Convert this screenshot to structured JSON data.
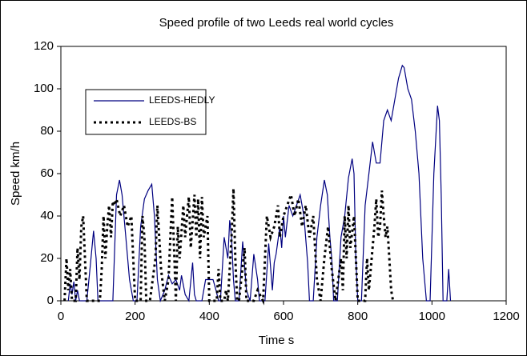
{
  "chart_data": {
    "type": "line",
    "title": "Speed profile of two Leeds real world cycles",
    "x_label": "Time  s",
    "y_label": "Speed  km/h",
    "xlim": [
      0,
      1200
    ],
    "xticks": [
      0,
      200,
      400,
      600,
      800,
      1000,
      1200
    ],
    "ylim": [
      0,
      120
    ],
    "yticks": [
      0,
      20,
      40,
      60,
      80,
      100,
      120
    ],
    "grid": false,
    "legend": "upper left",
    "series": [
      {
        "name": "LEEDS-HEDLY",
        "color": "#000080",
        "style": "solid",
        "x": [
          20,
          25,
          30,
          35,
          40,
          45,
          50,
          60,
          70,
          80,
          88,
          95,
          100,
          140,
          150,
          158,
          165,
          175,
          185,
          195,
          205,
          215,
          225,
          235,
          245,
          252,
          260,
          268,
          280,
          290,
          300,
          310,
          320,
          325,
          335,
          345,
          355,
          360,
          365,
          380,
          390,
          400,
          410,
          418,
          425,
          430,
          440,
          450,
          455,
          460,
          465,
          470,
          480,
          490,
          500,
          510,
          520,
          530,
          535,
          550,
          560,
          570,
          575,
          580,
          590,
          595,
          600,
          605,
          615,
          625,
          635,
          645,
          655,
          665,
          670,
          680,
          690,
          700,
          710,
          718,
          725,
          730,
          735,
          745,
          755,
          765,
          775,
          785,
          790,
          795,
          800,
          810,
          820,
          830,
          840,
          850,
          860,
          870,
          880,
          890,
          900,
          910,
          920,
          925,
          935,
          945,
          955,
          965,
          975,
          985,
          995,
          1005,
          1015,
          1020,
          1025,
          1030,
          1040,
          1045,
          1050
        ],
        "values": [
          0,
          8,
          3,
          9,
          0,
          5,
          0,
          0,
          0,
          18,
          33,
          20,
          0,
          0,
          50,
          57,
          50,
          30,
          10,
          0,
          0,
          35,
          48,
          52,
          55,
          40,
          10,
          0,
          5,
          12,
          8,
          10,
          5,
          12,
          3,
          0,
          18,
          3,
          0,
          0,
          10,
          10,
          10,
          5,
          0,
          0,
          30,
          20,
          38,
          30,
          10,
          0,
          0,
          28,
          5,
          0,
          22,
          10,
          0,
          0,
          27,
          5,
          18,
          22,
          35,
          25,
          40,
          30,
          45,
          40,
          45,
          50,
          40,
          18,
          0,
          0,
          30,
          45,
          57,
          50,
          30,
          20,
          0,
          0,
          30,
          40,
          58,
          67,
          60,
          20,
          0,
          0,
          45,
          60,
          75,
          65,
          65,
          85,
          90,
          85,
          95,
          105,
          111,
          110,
          100,
          95,
          80,
          60,
          20,
          0,
          0,
          60,
          92,
          85,
          50,
          0,
          0,
          15,
          0
        ]
      },
      {
        "name": "LEEDS-BS",
        "color": "#000000",
        "style": "dotted",
        "x": [
          10,
          15,
          20,
          25,
          30,
          40,
          45,
          50,
          55,
          60,
          65,
          70,
          105,
          110,
          115,
          120,
          125,
          130,
          135,
          140,
          145,
          150,
          160,
          170,
          180,
          190,
          200,
          215,
          220,
          225,
          230,
          240,
          255,
          260,
          265,
          270,
          280,
          290,
          295,
          300,
          305,
          310,
          315,
          320,
          330,
          335,
          340,
          345,
          350,
          360,
          365,
          370,
          375,
          380,
          385,
          395,
          400,
          420,
          425,
          430,
          440,
          445,
          450,
          460,
          465,
          470,
          475,
          480,
          495,
          500,
          520,
          530,
          545,
          555,
          565,
          575,
          585,
          590,
          600,
          610,
          620,
          630,
          640,
          650,
          660,
          670,
          680,
          690,
          700,
          710,
          720,
          730,
          740,
          755,
          760,
          765,
          770,
          775,
          780,
          790,
          800,
          820,
          825,
          830,
          840,
          845,
          850,
          855,
          860,
          865,
          870,
          875,
          880,
          885,
          890,
          895
        ],
        "values": [
          0,
          20,
          5,
          15,
          0,
          0,
          25,
          10,
          35,
          40,
          20,
          0,
          0,
          15,
          40,
          20,
          35,
          45,
          30,
          47,
          45,
          48,
          40,
          45,
          35,
          40,
          0,
          0,
          40,
          30,
          0,
          0,
          20,
          45,
          30,
          15,
          0,
          10,
          30,
          49,
          25,
          0,
          35,
          20,
          45,
          30,
          40,
          49,
          25,
          50,
          30,
          48,
          20,
          49,
          30,
          40,
          0,
          0,
          15,
          0,
          0,
          5,
          0,
          30,
          53,
          20,
          0,
          0,
          25,
          0,
          0,
          5,
          0,
          40,
          30,
          35,
          45,
          30,
          40,
          45,
          50,
          40,
          48,
          35,
          45,
          30,
          40,
          10,
          0,
          20,
          35,
          15,
          0,
          20,
          5,
          40,
          20,
          45,
          25,
          40,
          0,
          0,
          20,
          5,
          25,
          35,
          48,
          30,
          35,
          52,
          40,
          30,
          35,
          20,
          5,
          0
        ]
      }
    ]
  }
}
